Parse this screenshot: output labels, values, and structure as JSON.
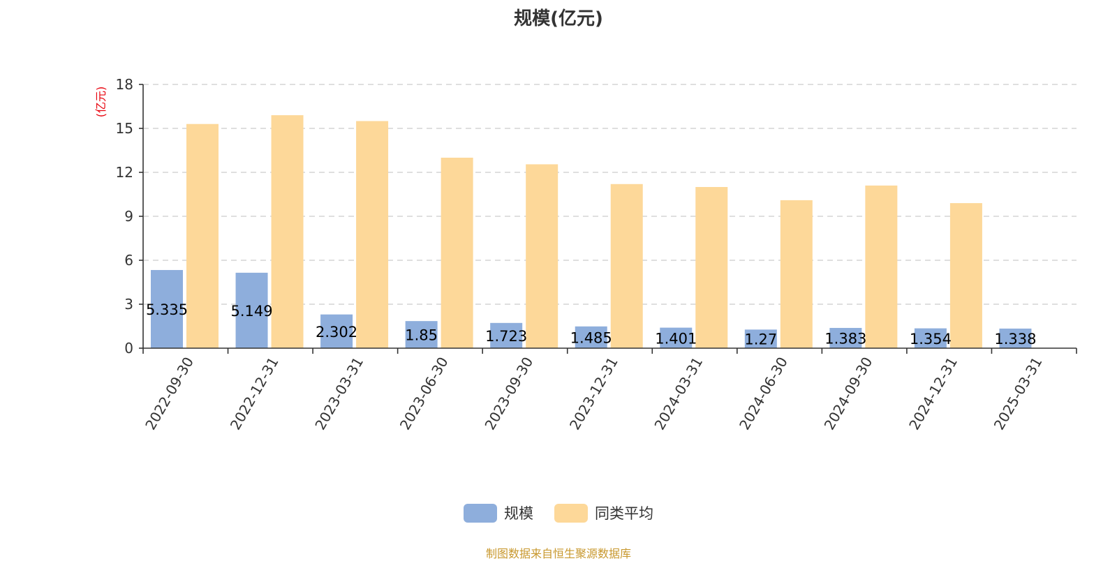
{
  "chart_data": {
    "type": "bar",
    "title": "规模(亿元)",
    "y_unit_label": "(亿元)",
    "categories": [
      "2022-09-30",
      "2022-12-31",
      "2023-03-31",
      "2023-06-30",
      "2023-09-30",
      "2023-12-31",
      "2024-03-31",
      "2024-06-30",
      "2024-09-30",
      "2024-12-31",
      "2025-03-31"
    ],
    "series": [
      {
        "name": "规模",
        "color": "#8eaedc",
        "values": [
          5.335,
          5.149,
          2.302,
          1.85,
          1.723,
          1.485,
          1.401,
          1.27,
          1.383,
          1.354,
          1.338
        ],
        "labels": [
          "5.335",
          "5.149",
          "2.302",
          "1.85",
          "1.723",
          "1.485",
          "1.401",
          "1.27",
          "1.383",
          "1.354",
          "1.338"
        ]
      },
      {
        "name": "同类平均",
        "color": "#fdd899",
        "values": [
          15.3,
          15.9,
          15.5,
          13.0,
          12.55,
          11.2,
          11.0,
          10.1,
          11.1,
          9.9,
          null
        ]
      }
    ],
    "ylim": [
      0,
      18
    ],
    "yticks": [
      0,
      3,
      6,
      9,
      12,
      15,
      18
    ],
    "grid": true,
    "legend_position": "bottom"
  },
  "source_note": "制图数据来自恒生聚源数据库"
}
